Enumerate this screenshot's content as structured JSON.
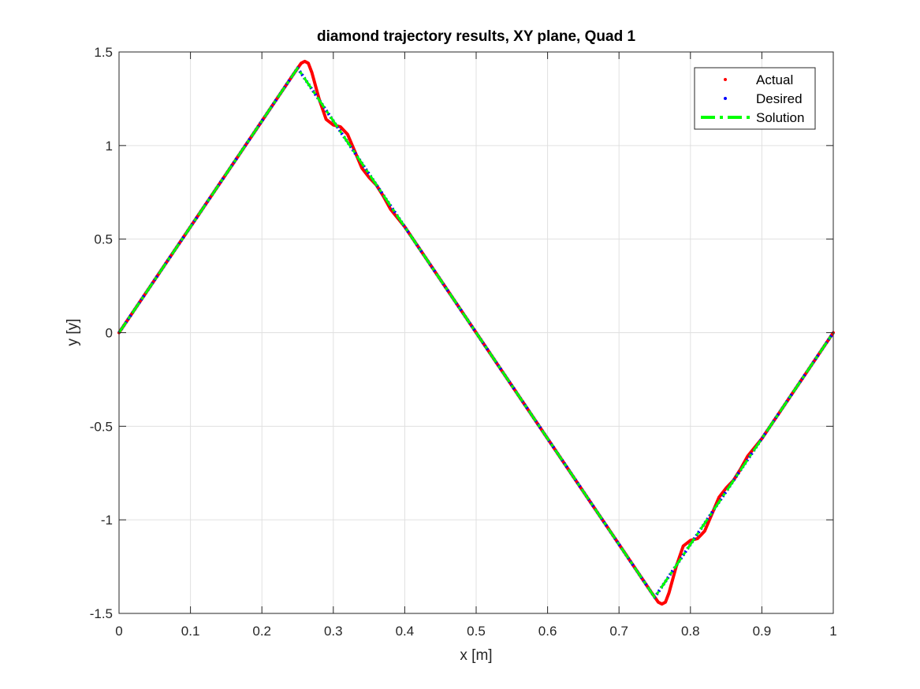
{
  "chart_data": {
    "type": "line",
    "title": "diamond trajectory results, XY plane, Quad 1",
    "xlabel": "x [m]",
    "ylabel": "y [y]",
    "xlim": [
      0,
      1
    ],
    "ylim": [
      -1.5,
      1.5
    ],
    "xticks": [
      "0",
      "0.1",
      "0.2",
      "0.3",
      "0.4",
      "0.5",
      "0.6",
      "0.7",
      "0.8",
      "0.9",
      "1"
    ],
    "yticks": [
      "1.5",
      "1",
      "0.5",
      "0",
      "-0.5",
      "-1",
      "-1.5"
    ],
    "grid": true,
    "legend_position": "top-right",
    "series": [
      {
        "name": "Actual",
        "color": "#ff0000",
        "style": "dots",
        "x": [
          0,
          0.1,
          0.2,
          0.245,
          0.255,
          0.26,
          0.265,
          0.27,
          0.28,
          0.29,
          0.3,
          0.31,
          0.32,
          0.33,
          0.34,
          0.35,
          0.36,
          0.37,
          0.38,
          0.4,
          0.45,
          0.5,
          0.55,
          0.6,
          0.65,
          0.7,
          0.745,
          0.755,
          0.76,
          0.765,
          0.77,
          0.78,
          0.79,
          0.8,
          0.81,
          0.82,
          0.83,
          0.84,
          0.85,
          0.86,
          0.87,
          0.88,
          0.9,
          0.95,
          1.0
        ],
        "y": [
          0,
          0.566,
          1.131,
          1.386,
          1.44,
          1.45,
          1.44,
          1.39,
          1.25,
          1.14,
          1.11,
          1.1,
          1.06,
          0.97,
          0.88,
          0.83,
          0.79,
          0.73,
          0.66,
          0.566,
          0.283,
          0,
          -0.283,
          -0.566,
          -0.849,
          -1.131,
          -1.386,
          -1.44,
          -1.45,
          -1.44,
          -1.39,
          -1.25,
          -1.14,
          -1.11,
          -1.1,
          -1.06,
          -0.97,
          -0.88,
          -0.83,
          -0.79,
          -0.73,
          -0.66,
          -0.566,
          -0.283,
          0
        ]
      },
      {
        "name": "Desired",
        "color": "#0000ff",
        "style": "dots",
        "x": [
          0,
          0.25,
          0.75,
          1.0
        ],
        "y": [
          0,
          1.414,
          -1.414,
          0
        ]
      },
      {
        "name": "Solution",
        "color": "#00ff00",
        "style": "dash-dot",
        "x": [
          0,
          0.25,
          0.75,
          1.0
        ],
        "y": [
          0,
          1.414,
          -1.414,
          0
        ]
      }
    ]
  }
}
